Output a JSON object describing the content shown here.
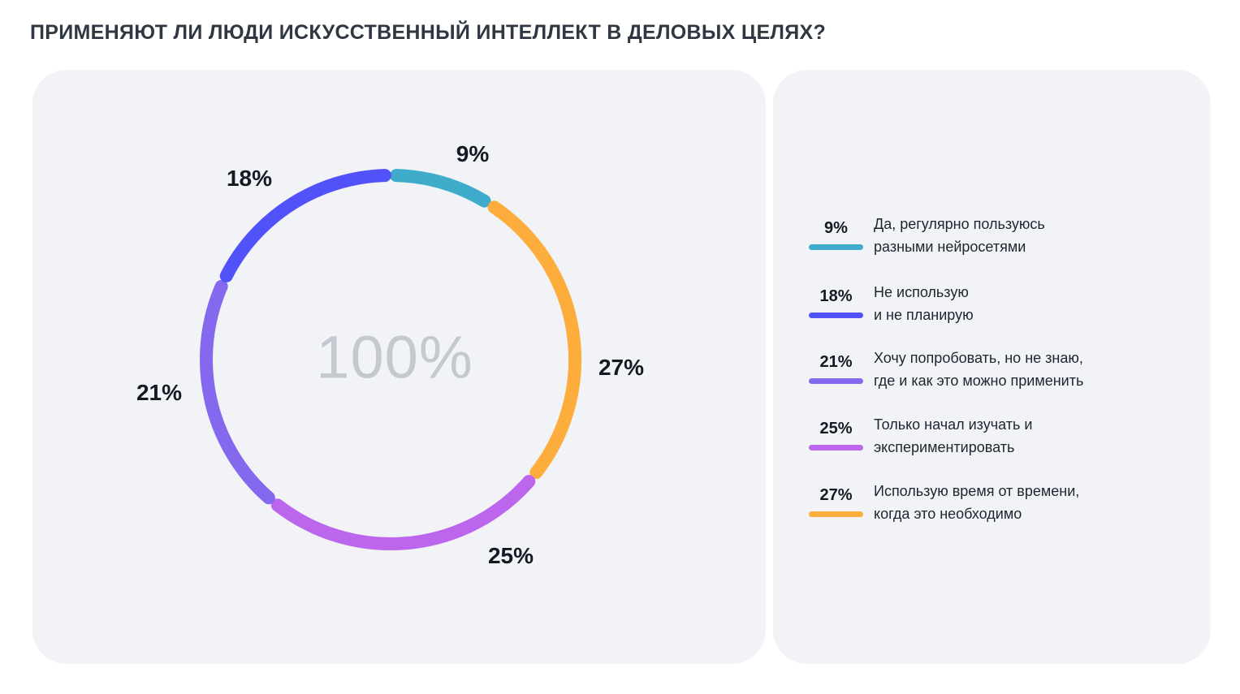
{
  "title": "ПРИМЕНЯЮТ ЛИ ЛЮДИ ИСКУССТВЕННЫЙ ИНТЕЛЛЕКТ В ДЕЛОВЫХ ЦЕЛЯХ?",
  "chart_data": {
    "type": "pie",
    "variant": "donut",
    "title": "ПРИМЕНЯЮТ ЛИ ЛЮДИ ИСКУССТВЕННЫЙ ИНТЕЛЛЕКТ В ДЕЛОВЫХ ЦЕЛЯХ?",
    "center_label": "100%",
    "slices": [
      {
        "label": "Да, регулярно пользуюсь разными нейросетями",
        "line1": "Да, регулярно пользуюсь",
        "line2": "разными нейросетями",
        "value": 9,
        "display": "9%",
        "color": "#3eabcb"
      },
      {
        "label": "Использую время от времени, когда это необходимо",
        "line1": "Использую время от времени,",
        "line2": "когда это необходимо",
        "value": 27,
        "display": "27%",
        "color": "#fdad3b"
      },
      {
        "label": "Только начал изучать и экспериментировать",
        "line1": "Только начал изучать и",
        "line2": "экспериментировать",
        "value": 25,
        "display": "25%",
        "color": "#bb66ec"
      },
      {
        "label": "Хочу попробовать, но не знаю, где и как это можно применить",
        "line1": "Хочу попробовать, но не знаю,",
        "line2": "где и как это можно применить",
        "value": 21,
        "display": "21%",
        "color": "#8468ee"
      },
      {
        "label": "Не использую и не планирую",
        "line1": "Не использую",
        "line2": "и не планирую",
        "value": 18,
        "display": "18%",
        "color": "#5252fa"
      }
    ],
    "legend_order": [
      0,
      4,
      3,
      2,
      1
    ],
    "legend": "right"
  }
}
